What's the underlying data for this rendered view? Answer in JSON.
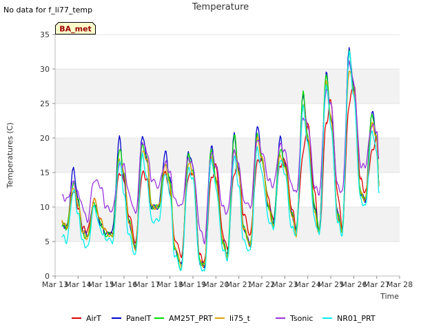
{
  "header": {
    "no_data_note": "No data for f_li77_temp",
    "title": "Temperature"
  },
  "badge": {
    "label": "BA_met",
    "fill": "#ffffcc",
    "text_color": "#990000"
  },
  "chart_data": {
    "type": "line",
    "title": "Temperature",
    "xlabel": "Time",
    "ylabel": "Temperatures (C)",
    "ylim": [
      0,
      35
    ],
    "yticks": [
      0,
      5,
      10,
      15,
      20,
      25,
      30,
      35
    ],
    "xlim": [
      13,
      28
    ],
    "xticks": [
      13,
      14,
      15,
      16,
      17,
      18,
      19,
      20,
      21,
      22,
      23,
      24,
      25,
      26,
      27,
      28
    ],
    "xtick_labels": [
      "Mar 13",
      "Mar 14",
      "Mar 15",
      "Mar 16",
      "Mar 17",
      "Mar 18",
      "Mar 19",
      "Mar 20",
      "Mar 21",
      "Mar 22",
      "Mar 23",
      "Mar 24",
      "Mar 25",
      "Mar 26",
      "Mar 27",
      "Mar 28"
    ],
    "x_unit": "day of March",
    "grid": "horizontal alternating bands",
    "legend_position": "bottom",
    "series": [
      {
        "name": "AirT",
        "color": "#dd0000",
        "x": [
          13.3,
          13.5,
          13.8,
          14.0,
          14.2,
          14.4,
          14.7,
          15.0,
          15.2,
          15.5,
          15.8,
          16.0,
          16.2,
          16.5,
          16.8,
          17.0,
          17.2,
          17.5,
          17.8,
          18.0,
          18.2,
          18.5,
          18.8,
          19.0,
          19.3,
          19.5,
          19.8,
          20.0,
          20.3,
          20.5,
          20.8,
          21.0,
          21.2,
          21.5,
          21.8,
          22.0,
          22.3,
          22.5,
          22.8,
          23.0,
          23.3,
          23.5,
          23.8,
          24.0,
          24.3,
          24.5,
          24.8,
          25.0,
          25.3,
          25.5,
          25.8,
          26.0,
          26.3,
          26.5,
          26.8,
          27.0,
          27.1
        ],
        "y": [
          8,
          7,
          12.5,
          10,
          7,
          6.5,
          11,
          8,
          6.5,
          6,
          15,
          14,
          9,
          5,
          15,
          14,
          10,
          10,
          15,
          12,
          5.5,
          3,
          14.5,
          15,
          3,
          2,
          14,
          16,
          6,
          4,
          15,
          16,
          9,
          6,
          16.5,
          17,
          11,
          8,
          16,
          17,
          10,
          7,
          18,
          22,
          12,
          6,
          22,
          25.5,
          12,
          7,
          25,
          28,
          14,
          12,
          18,
          20,
          13
        ]
      },
      {
        "name": "PanelT",
        "color": "#0000cc",
        "x": [
          13.3,
          13.5,
          13.8,
          14.0,
          14.2,
          14.4,
          14.7,
          15.0,
          15.2,
          15.5,
          15.8,
          16.0,
          16.2,
          16.5,
          16.8,
          17.0,
          17.2,
          17.5,
          17.8,
          18.0,
          18.2,
          18.5,
          18.8,
          19.0,
          19.3,
          19.5,
          19.8,
          20.0,
          20.3,
          20.5,
          20.8,
          21.0,
          21.2,
          21.5,
          21.8,
          22.0,
          22.3,
          22.5,
          22.8,
          23.0,
          23.3,
          23.5,
          23.8,
          24.0,
          24.3,
          24.5,
          24.8,
          25.0,
          25.3,
          25.5,
          25.8,
          26.0,
          26.3,
          26.5,
          26.8,
          27.0,
          27.1
        ],
        "y": [
          7.5,
          7,
          15.5,
          11,
          6.5,
          6,
          10.5,
          7.5,
          6,
          6.5,
          20,
          14,
          8,
          4,
          20.5,
          17,
          10,
          10,
          18,
          14,
          4,
          1.5,
          18,
          16,
          2,
          1.5,
          19,
          14,
          5,
          3,
          20.5,
          15,
          7,
          4.5,
          22,
          17,
          10,
          7.5,
          20,
          16,
          9,
          6.5,
          26.5,
          20,
          10,
          6.5,
          29.5,
          23,
          9,
          6.5,
          33,
          27,
          12,
          11,
          24,
          20,
          13.5
        ]
      },
      {
        "name": "AM25T_PRT",
        "color": "#00dd00",
        "x": [
          13.3,
          13.5,
          13.8,
          14.0,
          14.2,
          14.4,
          14.7,
          15.0,
          15.2,
          15.5,
          15.8,
          16.0,
          16.2,
          16.5,
          16.8,
          17.0,
          17.2,
          17.5,
          17.8,
          18.0,
          18.2,
          18.5,
          18.8,
          19.0,
          19.3,
          19.5,
          19.8,
          20.0,
          20.3,
          20.5,
          20.8,
          21.0,
          21.2,
          21.5,
          21.8,
          22.0,
          22.3,
          22.5,
          22.8,
          23.0,
          23.3,
          23.5,
          23.8,
          24.0,
          24.3,
          24.5,
          24.8,
          25.0,
          25.3,
          25.5,
          25.8,
          26.0,
          26.3,
          26.5,
          26.8,
          27.0,
          27.1
        ],
        "y": [
          7.5,
          7,
          13.5,
          11,
          6,
          5.5,
          10.5,
          7.5,
          6,
          6,
          18.5,
          15,
          8,
          4,
          19,
          17,
          10,
          10,
          16.5,
          14,
          4,
          1,
          17.5,
          15,
          2,
          1.5,
          18.5,
          14,
          5,
          3,
          20.5,
          15,
          7,
          4.5,
          20.5,
          17,
          10,
          7.5,
          18.5,
          16,
          9,
          6.5,
          26.5,
          20,
          10,
          6.5,
          29.5,
          23,
          9,
          6.5,
          32.5,
          27,
          12,
          11,
          23.5,
          20,
          13
        ]
      },
      {
        "name": "li75_t",
        "color": "#e0a000",
        "x": [
          13.3,
          13.5,
          13.8,
          14.0,
          14.2,
          14.4,
          14.7,
          15.0,
          15.2,
          15.5,
          15.8,
          16.0,
          16.2,
          16.5,
          16.8,
          17.0,
          17.2,
          17.5,
          17.8,
          18.0,
          18.2,
          18.5,
          18.8,
          19.0,
          19.3,
          19.5,
          19.8,
          20.0,
          20.3,
          20.5,
          20.8,
          21.0,
          21.2,
          21.5,
          21.8,
          22.0,
          22.3,
          22.5,
          22.8,
          23.0,
          23.3,
          23.5,
          23.8,
          24.0,
          24.3,
          24.5,
          24.8,
          25.0,
          25.3,
          25.5,
          25.8,
          26.0,
          26.3,
          26.5,
          26.8,
          27.0,
          27.1
        ],
        "y": [
          8,
          7,
          13,
          10.5,
          6.5,
          5.5,
          11,
          8,
          6.5,
          5.5,
          17,
          15,
          8,
          4,
          18,
          17,
          10,
          10,
          16,
          13,
          4.5,
          1.5,
          16.5,
          15,
          2,
          1.5,
          17,
          14,
          5,
          2.5,
          18.5,
          15,
          7,
          4.5,
          20,
          17,
          10,
          7,
          17.5,
          16,
          9,
          6,
          25,
          20,
          9,
          6,
          28,
          23,
          8.5,
          6.5,
          30,
          27,
          12,
          11,
          22,
          20,
          13
        ]
      },
      {
        "name": "Tsonic",
        "color": "#9933dd",
        "x": [
          13.3,
          13.5,
          13.8,
          14.0,
          14.2,
          14.4,
          14.7,
          15.0,
          15.2,
          15.5,
          15.8,
          16.0,
          16.2,
          16.5,
          16.8,
          17.0,
          17.2,
          17.5,
          17.8,
          18.0,
          18.2,
          18.5,
          18.8,
          19.0,
          19.3,
          19.5,
          19.8,
          20.0,
          20.3,
          20.5,
          20.8,
          21.0,
          21.2,
          21.5,
          21.8,
          22.0,
          22.3,
          22.5,
          22.8,
          23.0,
          23.3,
          23.5,
          23.8,
          24.0,
          24.3,
          24.5,
          24.8,
          25.0,
          25.3,
          25.5,
          25.8,
          26.0,
          26.3,
          26.5,
          26.8,
          27.0,
          27.1
        ],
        "y": [
          11.5,
          11,
          13.5,
          12,
          10,
          8,
          14,
          13,
          10,
          9.5,
          16,
          16,
          12,
          9,
          19.5,
          18,
          14,
          13,
          16.5,
          15,
          11,
          10,
          17,
          16,
          7,
          5,
          18,
          16,
          10,
          9,
          18,
          16,
          11,
          10,
          20,
          18,
          14,
          13,
          19,
          18,
          13,
          12,
          23,
          22,
          13,
          12,
          27,
          25,
          13,
          12,
          31,
          28,
          16,
          16,
          22,
          21,
          17
        ]
      },
      {
        "name": "NR01_PRT",
        "color": "#00eeee",
        "x": [
          13.3,
          13.5,
          13.8,
          14.0,
          14.2,
          14.4,
          14.7,
          15.0,
          15.2,
          15.5,
          15.8,
          16.0,
          16.2,
          16.5,
          16.8,
          17.0,
          17.2,
          17.5,
          17.8,
          18.0,
          18.2,
          18.5,
          18.8,
          19.0,
          19.3,
          19.5,
          19.8,
          20.0,
          20.3,
          20.5,
          20.8,
          21.0,
          21.2,
          21.5,
          21.8,
          22.0,
          22.3,
          22.5,
          22.8,
          23.0,
          23.3,
          23.5,
          23.8,
          24.0,
          24.3,
          24.5,
          24.8,
          25.0,
          25.3,
          25.5,
          25.8,
          26.0,
          26.3,
          26.5,
          26.8,
          27.0,
          27.1
        ],
        "y": [
          6,
          5,
          12.5,
          9,
          5,
          4,
          10,
          6.5,
          5.5,
          5,
          17,
          12,
          6,
          3,
          17.5,
          14,
          8,
          8,
          15,
          12,
          3,
          1,
          15.5,
          14,
          1.5,
          0.5,
          17,
          13,
          4,
          2.5,
          17.5,
          13,
          5,
          3.5,
          18.5,
          15,
          8,
          7,
          17,
          15,
          7,
          6,
          24.5,
          19,
          8,
          6,
          28,
          22,
          8,
          6,
          32.5,
          26,
          11,
          10,
          21,
          18,
          12
        ]
      }
    ]
  }
}
